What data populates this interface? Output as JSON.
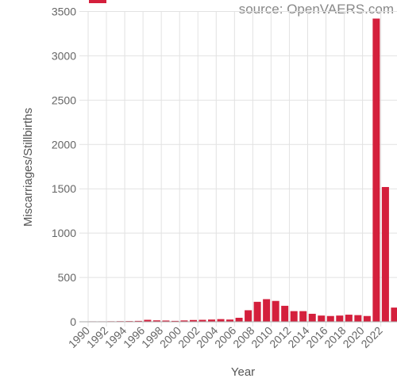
{
  "source_label": "source: OpenVAERS.com",
  "chart_data": {
    "type": "bar",
    "xlabel": "Year",
    "ylabel": "Miscarriages/Stillbirths",
    "ylim": [
      0,
      3500
    ],
    "yticks": [
      0,
      500,
      1000,
      1500,
      2000,
      2500,
      3000,
      3500
    ],
    "grid": true,
    "legend": "top-left",
    "categories": [
      "1990",
      "1991",
      "1992",
      "1993",
      "1994",
      "1995",
      "1996",
      "1997",
      "1998",
      "1999",
      "2000",
      "2001",
      "2002",
      "2003",
      "2004",
      "2005",
      "2006",
      "2007",
      "2008",
      "2009",
      "2010",
      "2011",
      "2012",
      "2013",
      "2014",
      "2015",
      "2016",
      "2017",
      "2018",
      "2019",
      "2020",
      "2021",
      "2022",
      "2023"
    ],
    "x_tick_labels": [
      "1990",
      "1992",
      "1994",
      "1996",
      "1998",
      "2000",
      "2002",
      "2004",
      "2006",
      "2008",
      "2010",
      "2012",
      "2014",
      "2016",
      "2018",
      "2020",
      "2022"
    ],
    "series": [
      {
        "color": "#d41f3c",
        "values": [
          5,
          5,
          6,
          7,
          8,
          10,
          22,
          16,
          14,
          10,
          15,
          20,
          22,
          25,
          30,
          25,
          45,
          130,
          225,
          255,
          235,
          180,
          120,
          120,
          90,
          70,
          65,
          70,
          80,
          75,
          65,
          3420,
          1520,
          160
        ]
      }
    ]
  }
}
